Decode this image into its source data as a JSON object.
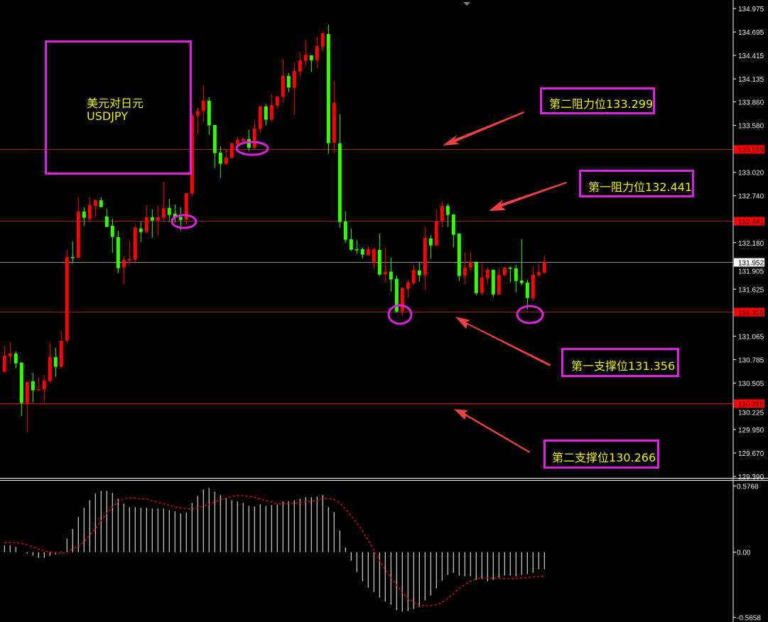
{
  "title_box": {
    "line1": "美元对日元",
    "line2": "USDJPY"
  },
  "annotations": {
    "resistance2": "第二阻力位133.299",
    "resistance1": "第一阻力位132.441",
    "support1": "第一支撑位131.356",
    "support2": "第二支撑位130.266"
  },
  "colors": {
    "up_candle": "#ff0000",
    "down_candle": "#33ff00",
    "annotation_box": "#e020e0",
    "annotation_text": "#f0f000",
    "arrow": "#f04040",
    "level_line": "#b01818",
    "support2_line": "#ff0000",
    "bid_line": "#8090a0",
    "macd_histogram": "#c8c8c8",
    "macd_signal": "#ff0000"
  },
  "chart_data": [
    {
      "type": "candlestick",
      "symbol": "USDJPY",
      "ylim": [
        129.39,
        134.975
      ],
      "y_ticks": [
        "134.975",
        "134.695",
        "134.415",
        "134.135",
        "133.860",
        "133.580",
        "133.020",
        "132.740",
        "132.180",
        "131.905",
        "131.625",
        "131.065",
        "130.785",
        "130.505",
        "130.225",
        "129.950",
        "129.670",
        "129.390"
      ],
      "levels": [
        {
          "value": "133.299",
          "kind": "resistance"
        },
        {
          "value": "132.441",
          "kind": "resistance"
        },
        {
          "value": "131.356",
          "kind": "support"
        },
        {
          "value": "130.266",
          "kind": "support-strong"
        }
      ],
      "bid": "131.952",
      "ohlc": [
        [
          130.639,
          130.95,
          130.628,
          130.831
        ],
        [
          130.825,
          130.992,
          130.746,
          130.856
        ],
        [
          130.856,
          130.882,
          130.681,
          130.74
        ],
        [
          130.746,
          130.755,
          130.111,
          130.266
        ],
        [
          130.266,
          130.526,
          129.916,
          130.517
        ],
        [
          130.526,
          130.628,
          130.274,
          130.418
        ],
        [
          130.418,
          130.568,
          130.418,
          130.433
        ],
        [
          130.427,
          130.594,
          130.274,
          130.534
        ],
        [
          130.526,
          130.975,
          130.512,
          130.814
        ],
        [
          130.814,
          130.924,
          130.579,
          130.698
        ],
        [
          130.698,
          131.128,
          130.69,
          131.009
        ],
        [
          131.012,
          132.094,
          130.969,
          132.009
        ],
        [
          132.009,
          132.195,
          131.935,
          132.001
        ],
        [
          132.001,
          132.721,
          131.995,
          132.551
        ],
        [
          132.551,
          132.602,
          132.382,
          132.478
        ],
        [
          132.469,
          132.721,
          132.424,
          132.628
        ],
        [
          132.619,
          132.696,
          132.484,
          132.687
        ],
        [
          132.687,
          132.721,
          132.602,
          132.605
        ],
        [
          132.492,
          132.585,
          132.368,
          132.368
        ],
        [
          132.382,
          132.467,
          132.06,
          132.249
        ],
        [
          132.246,
          132.323,
          131.817,
          131.876
        ],
        [
          131.884,
          132.018,
          131.679,
          131.975
        ],
        [
          131.969,
          132.204,
          131.916,
          131.984
        ],
        [
          131.978,
          132.39,
          131.935,
          132.357
        ],
        [
          132.348,
          132.433,
          132.19,
          132.308
        ],
        [
          132.308,
          132.628,
          132.291,
          132.484
        ],
        [
          132.484,
          132.577,
          132.24,
          132.444
        ],
        [
          132.444,
          132.619,
          132.266,
          132.484
        ],
        [
          132.478,
          132.907,
          132.427,
          132.594
        ],
        [
          132.594,
          132.704,
          132.427,
          132.512
        ],
        [
          132.526,
          132.636,
          132.424,
          132.478
        ],
        [
          132.486,
          132.602,
          132.325,
          132.452
        ],
        [
          132.456,
          132.772,
          132.388,
          132.772
        ],
        [
          132.766,
          133.729,
          132.732,
          133.698
        ],
        [
          133.698,
          133.789,
          133.469,
          133.749
        ],
        [
          133.749,
          134.06,
          133.613,
          133.874
        ],
        [
          133.874,
          133.916,
          133.469,
          133.579
        ],
        [
          133.585,
          133.585,
          133.071,
          133.249
        ],
        [
          133.255,
          133.331,
          132.952,
          133.122
        ],
        [
          133.122,
          133.297,
          133.105,
          133.196
        ],
        [
          133.19,
          133.374,
          133.19,
          133.365
        ],
        [
          133.359,
          133.441,
          133.354,
          133.407
        ],
        [
          133.39,
          133.433,
          133.382,
          133.418
        ],
        [
          133.416,
          133.526,
          133.274,
          133.314
        ],
        [
          133.314,
          133.645,
          133.297,
          133.543
        ],
        [
          133.537,
          133.814,
          133.486,
          133.806
        ],
        [
          133.806,
          133.831,
          133.579,
          133.647
        ],
        [
          133.647,
          133.95,
          133.63,
          133.823
        ],
        [
          133.817,
          133.933,
          133.774,
          133.924
        ],
        [
          133.918,
          134.374,
          133.848,
          134.17
        ],
        [
          134.17,
          134.204,
          133.978,
          134.032
        ],
        [
          134.029,
          134.331,
          133.707,
          134.229
        ],
        [
          134.221,
          134.45,
          134.153,
          134.357
        ],
        [
          134.351,
          134.602,
          134.283,
          134.424
        ],
        [
          134.416,
          134.416,
          134.221,
          134.357
        ],
        [
          134.357,
          134.636,
          134.266,
          134.526
        ],
        [
          134.518,
          134.696,
          134.458,
          134.679
        ],
        [
          134.67,
          134.78,
          133.24,
          133.368
        ],
        [
          133.374,
          134.111,
          133.255,
          133.848
        ],
        [
          133.365,
          133.713,
          132.359,
          132.427
        ],
        [
          132.433,
          132.551,
          132.181,
          132.215
        ],
        [
          132.221,
          132.348,
          132.079,
          132.096
        ],
        [
          132.102,
          132.212,
          132.045,
          132.094
        ],
        [
          132.102,
          132.119,
          131.995,
          132.037
        ],
        [
          132.029,
          132.136,
          132.029,
          132.102
        ],
        [
          131.944,
          132.119,
          131.859,
          132.102
        ],
        [
          132.094,
          132.289,
          131.783,
          131.8
        ],
        [
          131.8,
          132.119,
          131.706,
          131.834
        ],
        [
          131.834,
          132.001,
          131.596,
          131.74
        ],
        [
          131.749,
          131.791,
          131.342,
          131.359
        ],
        [
          131.359,
          131.647,
          131.3,
          131.639
        ],
        [
          131.63,
          131.732,
          131.529,
          131.706
        ],
        [
          131.698,
          131.918,
          131.681,
          131.851
        ],
        [
          131.848,
          131.941,
          131.715,
          131.791
        ],
        [
          131.791,
          132.373,
          131.613,
          132.238
        ],
        [
          132.229,
          132.272,
          131.986,
          132.147
        ],
        [
          132.147,
          132.577,
          132.139,
          132.435
        ],
        [
          132.435,
          132.662,
          132.365,
          132.619
        ],
        [
          132.619,
          132.645,
          132.365,
          132.512
        ],
        [
          132.518,
          132.518,
          132.122,
          132.274
        ],
        [
          132.289,
          132.289,
          131.723,
          131.783
        ],
        [
          131.783,
          132.068,
          131.681,
          131.882
        ],
        [
          131.882,
          132.068,
          131.834,
          131.95
        ],
        [
          131.95,
          131.958,
          131.554,
          131.579
        ],
        [
          131.579,
          131.941,
          131.554,
          131.763
        ],
        [
          131.757,
          131.882,
          131.681,
          131.856
        ],
        [
          131.856,
          131.856,
          131.529,
          131.562
        ],
        [
          131.562,
          131.882,
          131.562,
          131.797
        ],
        [
          131.791,
          131.89,
          131.783,
          131.882
        ],
        [
          131.882,
          131.899,
          131.706,
          131.876
        ],
        [
          131.873,
          131.916,
          131.588,
          131.723
        ],
        [
          131.729,
          132.221,
          131.673,
          131.698
        ],
        [
          131.704,
          131.738,
          131.384,
          131.52
        ],
        [
          131.52,
          131.899,
          131.486,
          131.797
        ],
        [
          131.791,
          131.924,
          131.774,
          131.831
        ],
        [
          131.823,
          132.026,
          131.808,
          131.952
        ]
      ]
    },
    {
      "type": "bar+line",
      "indicator": "MACD",
      "ylim": [
        -0.5658,
        0.5768
      ],
      "y_ticks": [
        "0.5768",
        "0.00",
        "-0.5658"
      ],
      "histogram": [
        0.06,
        0.06,
        0.047,
        0,
        -0.012,
        -0.031,
        -0.049,
        -0.049,
        -0.031,
        -0.018,
        0.006,
        0.117,
        0.203,
        0.308,
        0.386,
        0.453,
        0.509,
        0.534,
        0.534,
        0.515,
        0.466,
        0.423,
        0.392,
        0.392,
        0.386,
        0.386,
        0.38,
        0.38,
        0.38,
        0.367,
        0.355,
        0.337,
        0.343,
        0.429,
        0.49,
        0.546,
        0.558,
        0.527,
        0.497,
        0.466,
        0.453,
        0.441,
        0.429,
        0.404,
        0.398,
        0.417,
        0.404,
        0.41,
        0.414,
        0.441,
        0.441,
        0.453,
        0.466,
        0.478,
        0.478,
        0.484,
        0.497,
        0.392,
        0.349,
        0.189,
        0.041,
        -0.074,
        -0.172,
        -0.252,
        -0.308,
        -0.345,
        -0.394,
        -0.431,
        -0.456,
        -0.505,
        -0.517,
        -0.511,
        -0.492,
        -0.474,
        -0.419,
        -0.376,
        -0.314,
        -0.246,
        -0.197,
        -0.179,
        -0.203,
        -0.209,
        -0.209,
        -0.24,
        -0.234,
        -0.252,
        -0.24,
        -0.222,
        -0.203,
        -0.203,
        -0.209,
        -0.197,
        -0.191,
        -0.179,
        -0.148,
        -0.148
      ],
      "signal": [
        0.082,
        0.086,
        0.082,
        0.078,
        0.062,
        0.045,
        0.027,
        0.012,
        0.004,
        -0.002,
        -0.012,
        0.002,
        0.027,
        0.051,
        0.088,
        0.15,
        0.205,
        0.273,
        0.339,
        0.39,
        0.441,
        0.466,
        0.472,
        0.472,
        0.466,
        0.46,
        0.449,
        0.435,
        0.421,
        0.408,
        0.394,
        0.386,
        0.38,
        0.375,
        0.384,
        0.4,
        0.417,
        0.437,
        0.456,
        0.47,
        0.486,
        0.492,
        0.492,
        0.486,
        0.476,
        0.462,
        0.449,
        0.437,
        0.422,
        0.421,
        0.423,
        0.427,
        0.433,
        0.437,
        0.443,
        0.449,
        0.464,
        0.466,
        0.458,
        0.427,
        0.375,
        0.318,
        0.256,
        0.187,
        0.107,
        0.018,
        -0.072,
        -0.154,
        -0.223,
        -0.287,
        -0.349,
        -0.4,
        -0.437,
        -0.458,
        -0.466,
        -0.464,
        -0.458,
        -0.437,
        -0.4,
        -0.359,
        -0.314,
        -0.281,
        -0.252,
        -0.232,
        -0.224,
        -0.224,
        -0.224,
        -0.228,
        -0.23,
        -0.23,
        -0.23,
        -0.224,
        -0.22,
        -0.215,
        -0.211,
        -0.209
      ]
    }
  ]
}
